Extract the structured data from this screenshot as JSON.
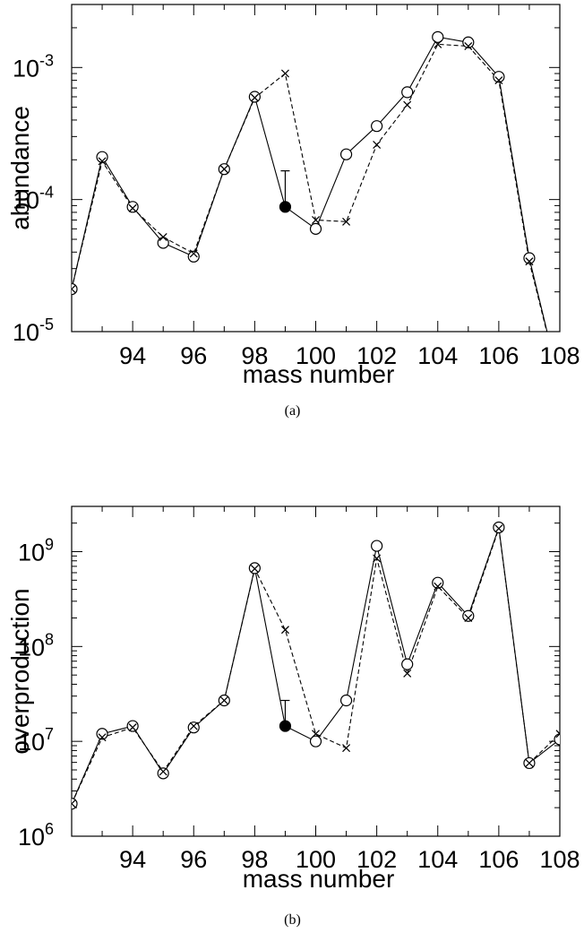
{
  "chart_data": [
    {
      "type": "line",
      "panel_label": "(a)",
      "xlabel": "mass number",
      "ylabel": "abundance",
      "y_scale": "log",
      "xlim": [
        92,
        108
      ],
      "ylim": [
        1e-05,
        0.003
      ],
      "x_ticks": [
        94,
        96,
        98,
        100,
        102,
        104,
        106,
        108
      ],
      "y_ticks": [
        {
          "value": 1e-05,
          "base": "10",
          "exp": "-5"
        },
        {
          "value": 0.0001,
          "base": "10",
          "exp": "-4"
        },
        {
          "value": 0.001,
          "base": "10",
          "exp": "-3"
        }
      ],
      "series": [
        {
          "style": "solid-circles",
          "points": [
            [
              92,
              2.1e-05
            ],
            [
              93,
              0.00021
            ],
            [
              94,
              8.8e-05
            ],
            [
              95,
              4.7e-05
            ],
            [
              96,
              3.7e-05
            ],
            [
              97,
              0.00017
            ],
            [
              98,
              0.0006
            ],
            [
              99,
              8.8e-05
            ],
            [
              100,
              6e-05
            ],
            [
              101,
              0.00022
            ],
            [
              102,
              0.00036
            ],
            [
              103,
              0.00065
            ],
            [
              104,
              0.0017
            ],
            [
              105,
              0.00155
            ],
            [
              106,
              0.00085
            ],
            [
              107,
              3.6e-05
            ],
            [
              108,
              4e-06
            ]
          ],
          "filled_points": [
            99
          ]
        },
        {
          "style": "dashed-crosses",
          "points": [
            [
              92,
              2.1e-05
            ],
            [
              93,
              0.000195
            ],
            [
              94,
              8.6e-05
            ],
            [
              95,
              5.2e-05
            ],
            [
              96,
              3.9e-05
            ],
            [
              97,
              0.00017
            ],
            [
              98,
              0.00059
            ],
            [
              99,
              0.0009
            ],
            [
              100,
              7e-05
            ],
            [
              101,
              6.8e-05
            ],
            [
              102,
              0.00026
            ],
            [
              103,
              0.00052
            ],
            [
              104,
              0.0015
            ],
            [
              105,
              0.00145
            ],
            [
              106,
              0.0008
            ],
            [
              107,
              3.4e-05
            ],
            [
              108,
              4e-06
            ]
          ]
        }
      ],
      "error_bar": {
        "x": 99,
        "y": 8.8e-05,
        "upper": 0.000165
      }
    },
    {
      "type": "line",
      "panel_label": "(b)",
      "xlabel": "mass number",
      "ylabel": "overproduction",
      "y_scale": "log",
      "xlim": [
        92,
        108
      ],
      "ylim": [
        1000000.0,
        3000000000.0
      ],
      "x_ticks": [
        94,
        96,
        98,
        100,
        102,
        104,
        106,
        108
      ],
      "y_ticks": [
        {
          "value": 1000000.0,
          "base": "10",
          "exp": "6"
        },
        {
          "value": 10000000.0,
          "base": "10",
          "exp": "7"
        },
        {
          "value": 100000000.0,
          "base": "10",
          "exp": "8"
        },
        {
          "value": 1000000000.0,
          "base": "10",
          "exp": "9"
        }
      ],
      "series": [
        {
          "style": "solid-circles",
          "points": [
            [
              92,
              2200000.0
            ],
            [
              93,
              12000000.0
            ],
            [
              94,
              14500000.0
            ],
            [
              95,
              4600000.0
            ],
            [
              96,
              14000000.0
            ],
            [
              97,
              27000000.0
            ],
            [
              98,
              670000000.0
            ],
            [
              99,
              14500000.0
            ],
            [
              100,
              10000000.0
            ],
            [
              101,
              27000000.0
            ],
            [
              102,
              1150000000.0
            ],
            [
              103,
              65000000.0
            ],
            [
              104,
              470000000.0
            ],
            [
              105,
              210000000.0
            ],
            [
              106,
              1800000000.0
            ],
            [
              107,
              5900000.0
            ],
            [
              108,
              10500000.0
            ]
          ],
          "filled_points": [
            99
          ]
        },
        {
          "style": "dashed-crosses",
          "points": [
            [
              92,
              2200000.0
            ],
            [
              93,
              11000000.0
            ],
            [
              94,
              14000000.0
            ],
            [
              95,
              4800000.0
            ],
            [
              96,
              14500000.0
            ],
            [
              97,
              27000000.0
            ],
            [
              98,
              660000000.0
            ],
            [
              99,
              150000000.0
            ],
            [
              100,
              12000000.0
            ],
            [
              101,
              8500000.0
            ],
            [
              102,
              850000000.0
            ],
            [
              103,
              52000000.0
            ],
            [
              104,
              430000000.0
            ],
            [
              105,
              200000000.0
            ],
            [
              106,
              1750000000.0
            ],
            [
              107,
              5900000.0
            ],
            [
              108,
              12000000.0
            ]
          ]
        }
      ],
      "error_bar": {
        "x": 99,
        "y": 14500000.0,
        "upper": 27000000.0
      }
    }
  ]
}
